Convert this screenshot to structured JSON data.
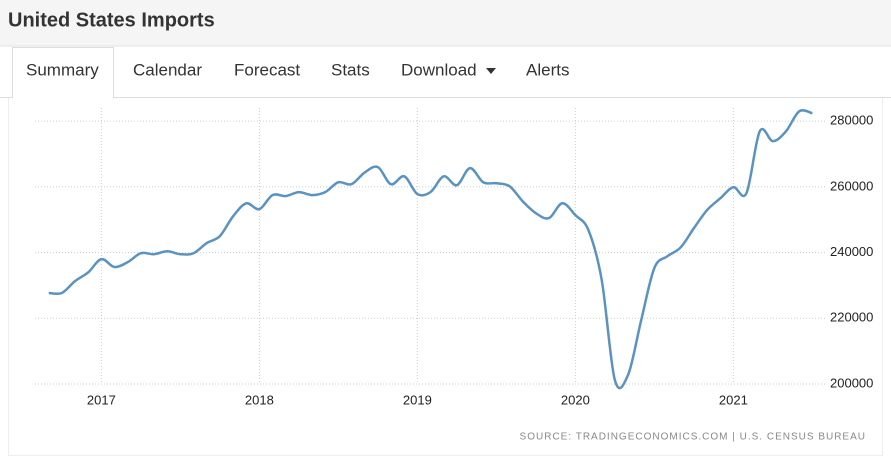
{
  "header": {
    "title": "United States Imports"
  },
  "tabs": [
    "Summary",
    "Calendar",
    "Forecast",
    "Stats",
    "Download",
    "Alerts"
  ],
  "chart_data": {
    "type": "line",
    "source": "SOURCE: TRADINGECONOMICS.COM | U.S. CENSUS BUREAU",
    "x": [
      2016.667,
      2016.75,
      2016.833,
      2016.917,
      2017,
      2017.083,
      2017.167,
      2017.25,
      2017.333,
      2017.417,
      2017.5,
      2017.583,
      2017.667,
      2017.75,
      2017.833,
      2017.917,
      2018,
      2018.083,
      2018.167,
      2018.25,
      2018.333,
      2018.417,
      2018.5,
      2018.583,
      2018.667,
      2018.75,
      2018.833,
      2018.917,
      2019,
      2019.083,
      2019.167,
      2019.25,
      2019.333,
      2019.417,
      2019.5,
      2019.583,
      2019.667,
      2019.75,
      2019.833,
      2019.917,
      2020,
      2020.083,
      2020.167,
      2020.25,
      2020.333,
      2020.417,
      2020.5,
      2020.583,
      2020.667,
      2020.75,
      2020.833,
      2020.917,
      2021,
      2021.083,
      2021.167,
      2021.25,
      2021.333,
      2021.417,
      2021.5
    ],
    "series": [
      {
        "color": "#5b93c0",
        "values": [
          227700,
          227700,
          231300,
          234000,
          238000,
          235600,
          237100,
          239800,
          239500,
          240400,
          239500,
          239800,
          242900,
          245000,
          251000,
          255000,
          253200,
          257500,
          257200,
          258400,
          257500,
          258400,
          261400,
          260800,
          264400,
          266000,
          260800,
          263200,
          257800,
          258400,
          263200,
          260500,
          265700,
          261400,
          261100,
          260200,
          255600,
          252000,
          250500,
          255000,
          251400,
          246800,
          231600,
          201200,
          202700,
          219500,
          235300,
          238900,
          241600,
          247400,
          252900,
          256500,
          259900,
          258100,
          276900,
          273900,
          276900,
          283000,
          282400
        ]
      }
    ],
    "xlim": [
      2016.58,
      2021.58
    ],
    "xticks": [
      2017,
      2018,
      2019,
      2020,
      2021
    ],
    "ylim": [
      200000,
      284000
    ],
    "yticks": [
      200000,
      220000,
      240000,
      260000,
      280000
    ],
    "grid": true
  }
}
